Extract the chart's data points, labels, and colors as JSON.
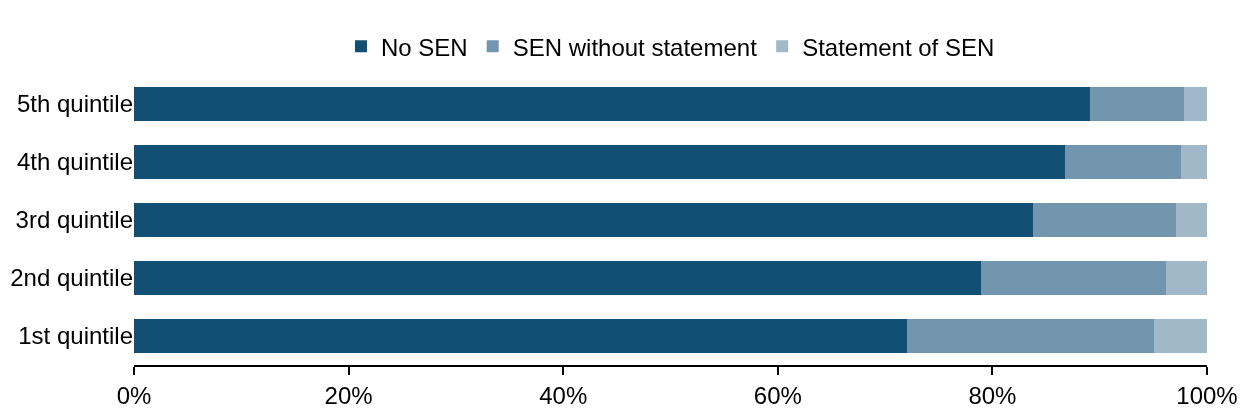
{
  "chart_data": {
    "type": "bar",
    "orientation": "horizontal",
    "stacked": true,
    "categories": [
      "5th quintile",
      "4th quintile",
      "3rd quintile",
      "2nd quintile",
      "1st quintile"
    ],
    "series": [
      {
        "name": "No SEN",
        "color": "#114f75",
        "values": [
          89.1,
          86.8,
          83.8,
          78.9,
          72.0
        ]
      },
      {
        "name": "SEN without statement",
        "color": "#7296ae",
        "values": [
          8.8,
          10.8,
          13.3,
          17.3,
          23.1
        ]
      },
      {
        "name": "Statement of SEN",
        "color": "#a1b8c8",
        "values": [
          2.1,
          2.4,
          2.9,
          3.8,
          4.9
        ]
      }
    ],
    "xlim": [
      0,
      100
    ],
    "xticks": [
      {
        "value": 0,
        "label": "0%"
      },
      {
        "value": 20,
        "label": "20%"
      },
      {
        "value": 40,
        "label": "40%"
      },
      {
        "value": 60,
        "label": "60%"
      },
      {
        "value": 80,
        "label": "80%"
      },
      {
        "value": 100,
        "label": "100%"
      }
    ],
    "legend": "top"
  }
}
